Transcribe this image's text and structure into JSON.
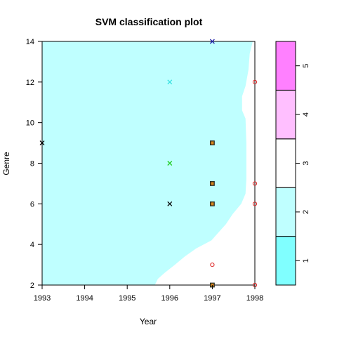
{
  "chart_data": {
    "type": "scatter",
    "title": "SVM classification plot",
    "xlabel": "Year",
    "ylabel": "Genre",
    "xlim": [
      1993,
      1998
    ],
    "ylim": [
      2,
      14
    ],
    "xticks": [
      1993,
      1994,
      1995,
      1996,
      1997,
      1998
    ],
    "yticks": [
      2,
      4,
      6,
      8,
      10,
      12,
      14
    ],
    "grid": false,
    "background_region": {
      "description": "decision region class 2 (light cyan) on the left, class 3 (white) on the right",
      "boundary": [
        {
          "y": 2.0,
          "x": 1995.65
        },
        {
          "y": 2.3,
          "x": 1995.72
        },
        {
          "y": 2.6,
          "x": 1995.88
        },
        {
          "y": 3.0,
          "x": 1996.12
        },
        {
          "y": 3.4,
          "x": 1996.35
        },
        {
          "y": 3.8,
          "x": 1996.62
        },
        {
          "y": 4.2,
          "x": 1996.98
        },
        {
          "y": 4.6,
          "x": 1997.15
        },
        {
          "y": 5.0,
          "x": 1997.32
        },
        {
          "y": 5.5,
          "x": 1997.48
        },
        {
          "y": 6.0,
          "x": 1997.68
        },
        {
          "y": 6.5,
          "x": 1997.78
        },
        {
          "y": 7.2,
          "x": 1997.8
        },
        {
          "y": 9.0,
          "x": 1997.8
        },
        {
          "y": 10.2,
          "x": 1997.78
        },
        {
          "y": 10.6,
          "x": 1997.7
        },
        {
          "y": 11.3,
          "x": 1997.7
        },
        {
          "y": 11.8,
          "x": 1997.78
        },
        {
          "y": 12.6,
          "x": 1997.85
        },
        {
          "y": 13.4,
          "x": 1997.88
        },
        {
          "y": 14.0,
          "x": 1997.95
        }
      ]
    },
    "points": [
      {
        "x": 1997,
        "y": 14,
        "marker": "x",
        "color": "#2222aa"
      },
      {
        "x": 1996,
        "y": 12,
        "marker": "x",
        "color": "#33e0e0"
      },
      {
        "x": 1998,
        "y": 12,
        "marker": "o",
        "color": "#dd2222"
      },
      {
        "x": 1993,
        "y": 9,
        "marker": "x",
        "color": "#000000"
      },
      {
        "x": 1997,
        "y": 9,
        "marker": "sv",
        "color": "#7a6a1a"
      },
      {
        "x": 1996,
        "y": 8,
        "marker": "x",
        "color": "#22cc22"
      },
      {
        "x": 1997,
        "y": 7,
        "marker": "sv",
        "color": "#7a6a1a"
      },
      {
        "x": 1998,
        "y": 7,
        "marker": "o",
        "color": "#dd2222"
      },
      {
        "x": 1996,
        "y": 6,
        "marker": "x",
        "color": "#000000"
      },
      {
        "x": 1997,
        "y": 6,
        "marker": "sv",
        "color": "#7a6a1a"
      },
      {
        "x": 1998,
        "y": 6,
        "marker": "o",
        "color": "#dd2222"
      },
      {
        "x": 1997,
        "y": 3,
        "marker": "o",
        "color": "#dd2222"
      },
      {
        "x": 1997,
        "y": 2,
        "marker": "sv",
        "color": "#7a6a1a"
      },
      {
        "x": 1998,
        "y": 2,
        "marker": "o",
        "color": "#dd2222"
      }
    ],
    "legend": {
      "type": "colorbar",
      "placement": "right",
      "classes": [
        {
          "label": "1",
          "color": "#80ffff"
        },
        {
          "label": "2",
          "color": "#bfffff"
        },
        {
          "label": "3",
          "color": "#ffffff"
        },
        {
          "label": "4",
          "color": "#ffbfff"
        },
        {
          "label": "5",
          "color": "#ff80ff"
        }
      ]
    }
  }
}
